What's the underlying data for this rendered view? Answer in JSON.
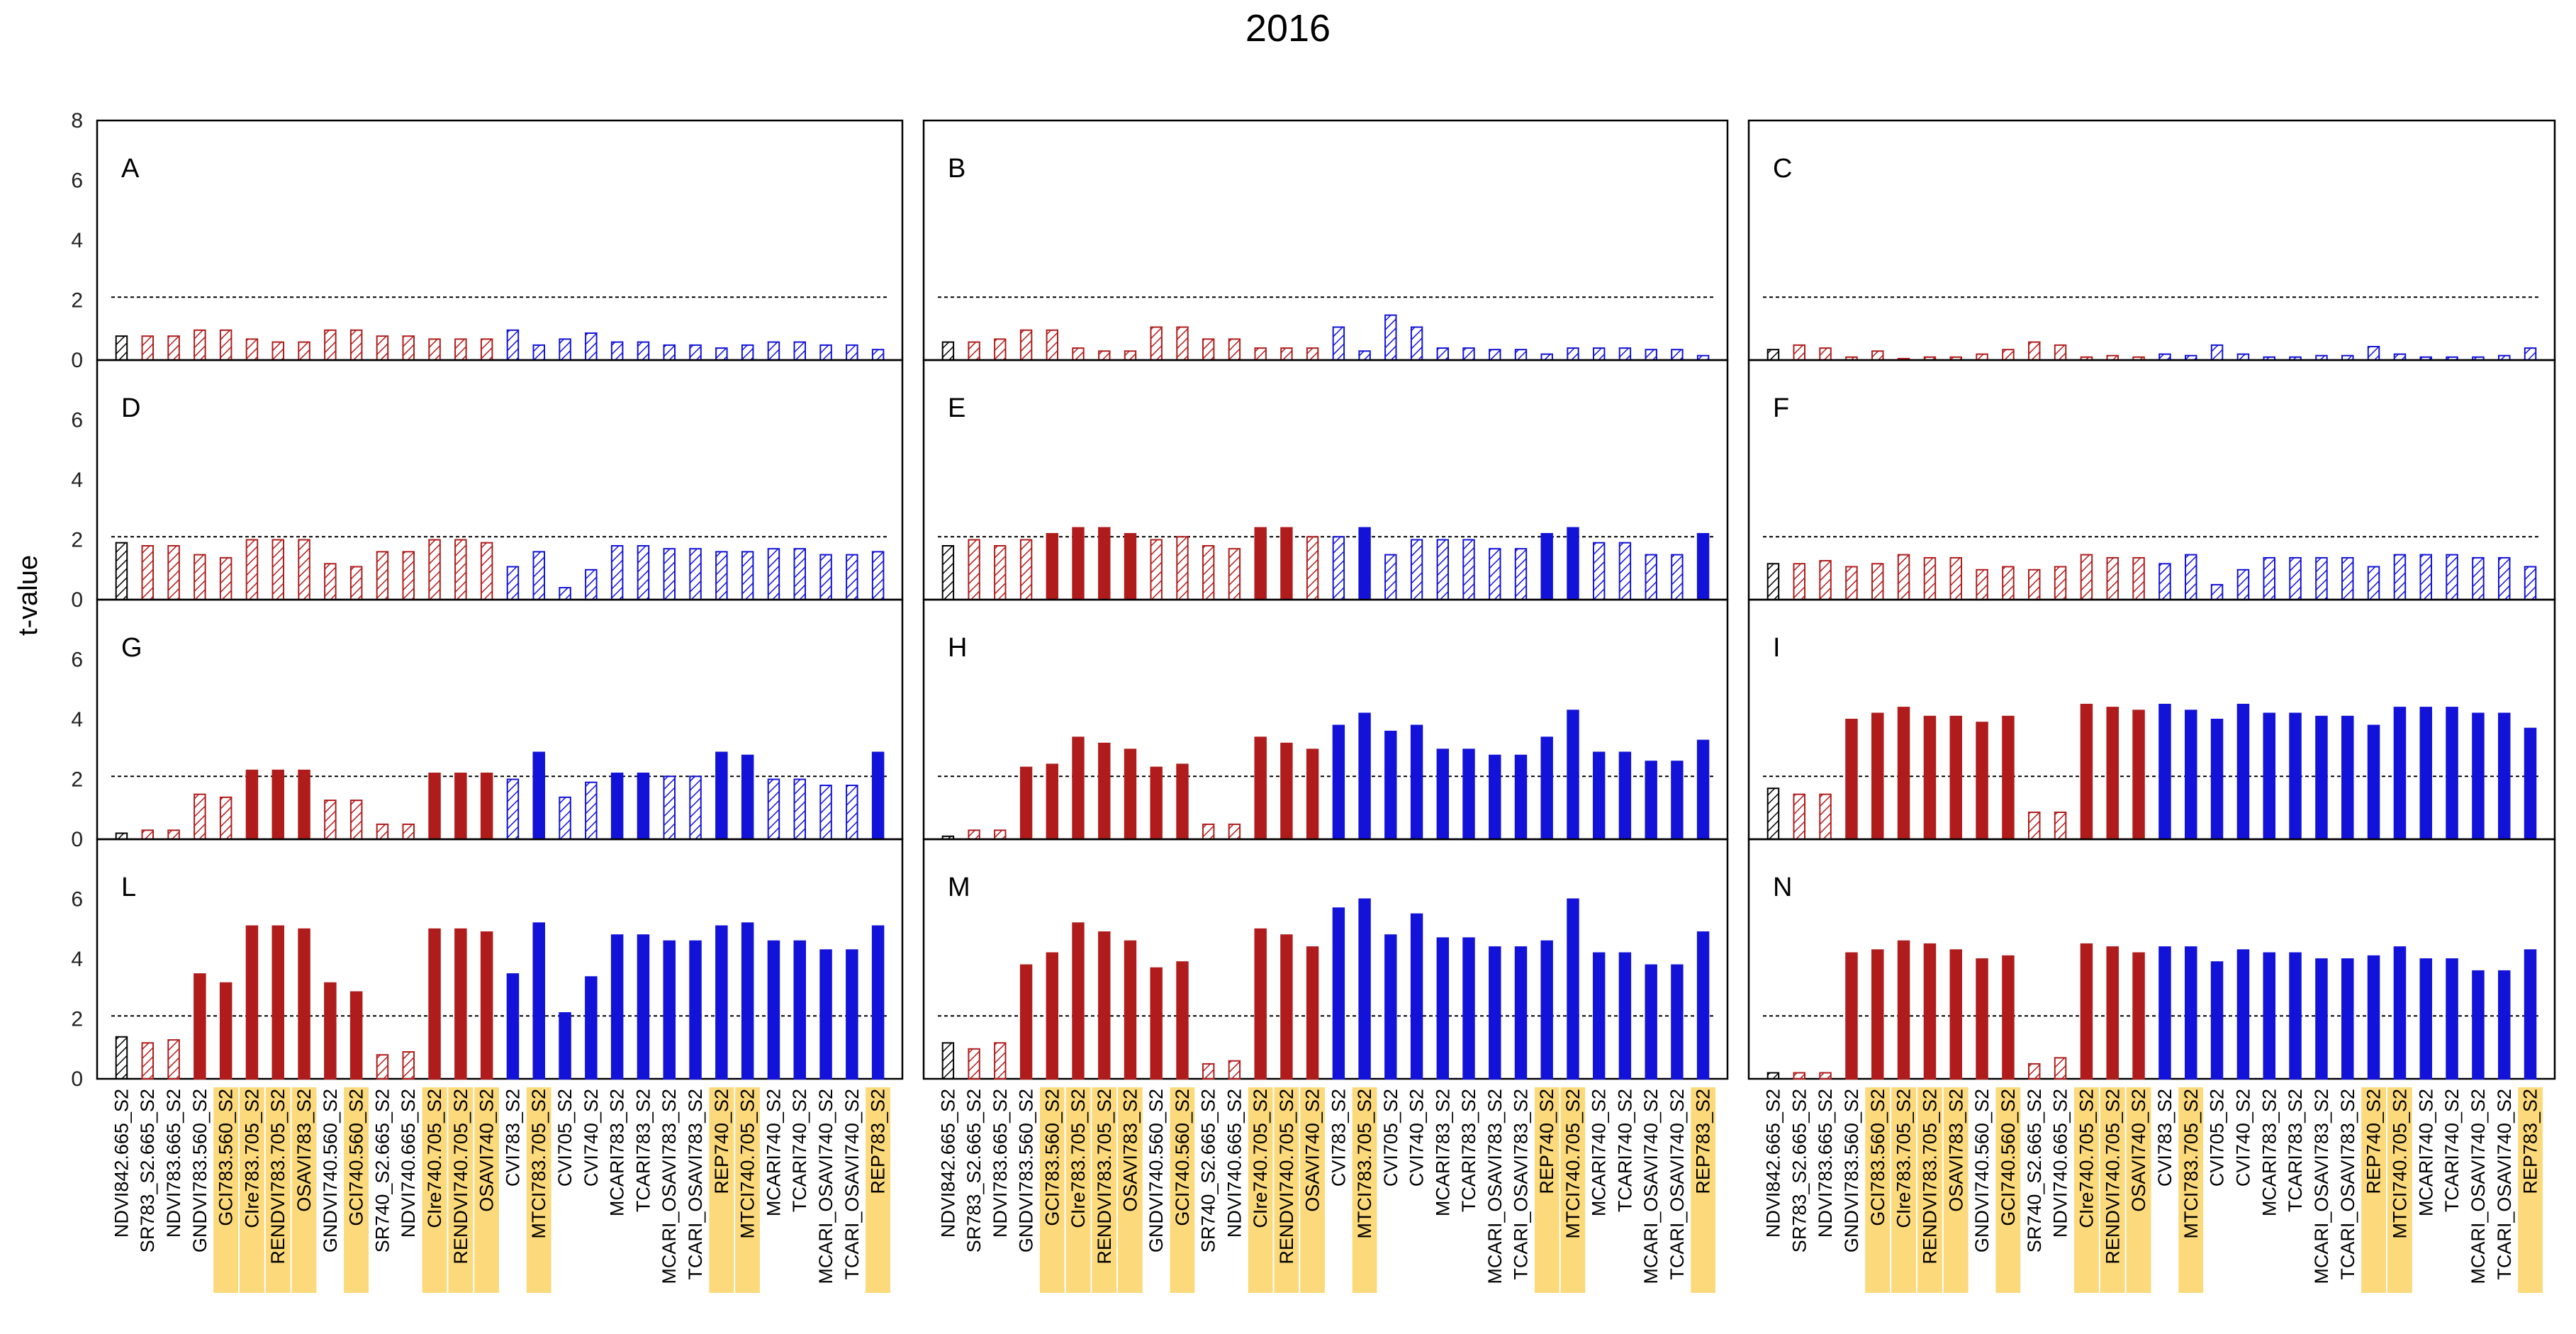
{
  "chart_data": {
    "type": "bar",
    "title": "2016",
    "ylabel": "t-value",
    "xlabel": "",
    "ylim": [
      0,
      8
    ],
    "yticks": [
      0,
      2,
      4,
      6,
      8
    ],
    "threshold": 2.1,
    "grid": false,
    "colors": {
      "reference": "#000000",
      "red_group": "#b01c1c",
      "blue_group": "#1212d8",
      "highlight": "#fcd97a"
    },
    "categories": [
      "NDVI842.665_S2",
      "SR783_S2.665_S2",
      "NDVI783.665_S2",
      "GNDVI783.560_S2",
      "GCI783.560_S2",
      "CIre783.705_S2",
      "RENDVI783.705_S2",
      "OSAVI783_S2",
      "GNDVI740.560_S2",
      "GCI740.560_S2",
      "SR740_S2.665_S2",
      "NDVI740.665_S2",
      "CIre740.705_S2",
      "RENDVI740.705_S2",
      "OSAVI740_S2",
      "CVI783_S2",
      "MTCI783.705_S2",
      "CVI705_S2",
      "CVI740_S2",
      "MCARI783_S2",
      "TCARI783_S2",
      "MCARI_OSAVI783_S2",
      "TCARI_OSAVI783_S2",
      "REP740_S2",
      "MTCI740.705_S2",
      "MCARI740_S2",
      "TCARI740_S2",
      "MCARI_OSAVI740_S2",
      "TCARI_OSAVI740_S2",
      "REP783_S2"
    ],
    "highlighted_categories": [
      "GCI783.560_S2",
      "CIre783.705_S2",
      "RENDVI783.705_S2",
      "OSAVI783_S2",
      "GCI740.560_S2",
      "CIre740.705_S2",
      "RENDVI740.705_S2",
      "OSAVI740_S2",
      "MTCI783.705_S2",
      "REP740_S2",
      "MTCI740.705_S2",
      "REP783_S2"
    ],
    "color_groups": [
      "black",
      "red",
      "red",
      "red",
      "red",
      "red",
      "red",
      "red",
      "red",
      "red",
      "red",
      "red",
      "red",
      "red",
      "red",
      "blue",
      "blue",
      "blue",
      "blue",
      "blue",
      "blue",
      "blue",
      "blue",
      "blue",
      "blue",
      "blue",
      "blue",
      "blue",
      "blue",
      "blue"
    ],
    "fill_rule": "hatched when t-value is below threshold, solid when above",
    "panels": [
      {
        "label": "A",
        "values": [
          0.8,
          0.8,
          0.8,
          1.0,
          1.0,
          0.7,
          0.6,
          0.6,
          1.0,
          1.0,
          0.8,
          0.8,
          0.7,
          0.7,
          0.7,
          1.0,
          0.5,
          0.7,
          0.9,
          0.6,
          0.6,
          0.5,
          0.5,
          0.4,
          0.5,
          0.6,
          0.6,
          0.5,
          0.5,
          0.35
        ]
      },
      {
        "label": "B",
        "values": [
          0.6,
          0.6,
          0.7,
          1.0,
          1.0,
          0.4,
          0.3,
          0.3,
          1.1,
          1.1,
          0.7,
          0.7,
          0.4,
          0.4,
          0.4,
          1.1,
          0.3,
          1.5,
          1.1,
          0.4,
          0.4,
          0.35,
          0.35,
          0.2,
          0.4,
          0.4,
          0.4,
          0.35,
          0.35,
          0.15
        ]
      },
      {
        "label": "C",
        "values": [
          0.35,
          0.5,
          0.4,
          0.1,
          0.3,
          0.05,
          0.1,
          0.1,
          0.2,
          0.35,
          0.6,
          0.5,
          0.1,
          0.15,
          0.1,
          0.2,
          0.15,
          0.5,
          0.2,
          0.1,
          0.1,
          0.15,
          0.15,
          0.45,
          0.2,
          0.1,
          0.1,
          0.1,
          0.15,
          0.4
        ]
      },
      {
        "label": "D",
        "values": [
          1.9,
          1.8,
          1.8,
          1.5,
          1.4,
          2.0,
          2.0,
          2.0,
          1.2,
          1.1,
          1.6,
          1.6,
          2.0,
          2.0,
          1.9,
          1.1,
          1.6,
          0.4,
          1.0,
          1.8,
          1.8,
          1.7,
          1.7,
          1.6,
          1.6,
          1.7,
          1.7,
          1.5,
          1.5,
          1.6
        ]
      },
      {
        "label": "E",
        "values": [
          1.8,
          2.0,
          1.8,
          2.0,
          2.2,
          2.4,
          2.4,
          2.2,
          2.0,
          2.1,
          1.8,
          1.7,
          2.4,
          2.4,
          2.1,
          2.1,
          2.4,
          1.5,
          2.0,
          2.0,
          2.0,
          1.7,
          1.7,
          2.2,
          2.4,
          1.9,
          1.9,
          1.5,
          1.5,
          2.2
        ]
      },
      {
        "label": "F",
        "values": [
          1.2,
          1.2,
          1.3,
          1.1,
          1.2,
          1.5,
          1.4,
          1.4,
          1.0,
          1.1,
          1.0,
          1.1,
          1.5,
          1.4,
          1.4,
          1.2,
          1.5,
          0.5,
          1.0,
          1.4,
          1.4,
          1.4,
          1.4,
          1.1,
          1.5,
          1.5,
          1.5,
          1.4,
          1.4,
          1.1
        ]
      },
      {
        "label": "G",
        "values": [
          0.2,
          0.3,
          0.3,
          1.5,
          1.4,
          2.3,
          2.3,
          2.3,
          1.3,
          1.3,
          0.5,
          0.5,
          2.2,
          2.2,
          2.2,
          2.0,
          2.9,
          1.4,
          1.9,
          2.2,
          2.2,
          2.1,
          2.1,
          2.9,
          2.8,
          2.0,
          2.0,
          1.8,
          1.8,
          2.9
        ]
      },
      {
        "label": "H",
        "values": [
          0.1,
          0.3,
          0.3,
          2.4,
          2.5,
          3.4,
          3.2,
          3.0,
          2.4,
          2.5,
          0.5,
          0.5,
          3.4,
          3.2,
          3.0,
          3.8,
          4.2,
          3.6,
          3.8,
          3.0,
          3.0,
          2.8,
          2.8,
          3.4,
          4.3,
          2.9,
          2.9,
          2.6,
          2.6,
          3.3
        ]
      },
      {
        "label": "I",
        "values": [
          1.7,
          1.5,
          1.5,
          4.0,
          4.2,
          4.4,
          4.1,
          4.1,
          3.9,
          4.1,
          0.9,
          0.9,
          4.5,
          4.4,
          4.3,
          4.5,
          4.3,
          4.0,
          4.5,
          4.2,
          4.2,
          4.1,
          4.1,
          3.8,
          4.4,
          4.4,
          4.4,
          4.2,
          4.2,
          3.7
        ]
      },
      {
        "label": "L",
        "values": [
          1.4,
          1.2,
          1.3,
          3.5,
          3.2,
          5.1,
          5.1,
          5.0,
          3.2,
          2.9,
          0.8,
          0.9,
          5.0,
          5.0,
          4.9,
          3.5,
          5.2,
          2.2,
          3.4,
          4.8,
          4.8,
          4.6,
          4.6,
          5.1,
          5.2,
          4.6,
          4.6,
          4.3,
          4.3,
          5.1
        ]
      },
      {
        "label": "M",
        "values": [
          1.2,
          1.0,
          1.2,
          3.8,
          4.2,
          5.2,
          4.9,
          4.6,
          3.7,
          3.9,
          0.5,
          0.6,
          5.0,
          4.8,
          4.4,
          5.7,
          6.0,
          4.8,
          5.5,
          4.7,
          4.7,
          4.4,
          4.4,
          4.6,
          6.0,
          4.2,
          4.2,
          3.8,
          3.8,
          4.9
        ]
      },
      {
        "label": "N",
        "values": [
          0.2,
          0.2,
          0.2,
          4.2,
          4.3,
          4.6,
          4.5,
          4.3,
          4.0,
          4.1,
          0.5,
          0.7,
          4.5,
          4.4,
          4.2,
          4.4,
          4.4,
          3.9,
          4.3,
          4.2,
          4.2,
          4.0,
          4.0,
          4.1,
          4.4,
          4.0,
          4.0,
          3.6,
          3.6,
          4.3
        ]
      }
    ]
  }
}
